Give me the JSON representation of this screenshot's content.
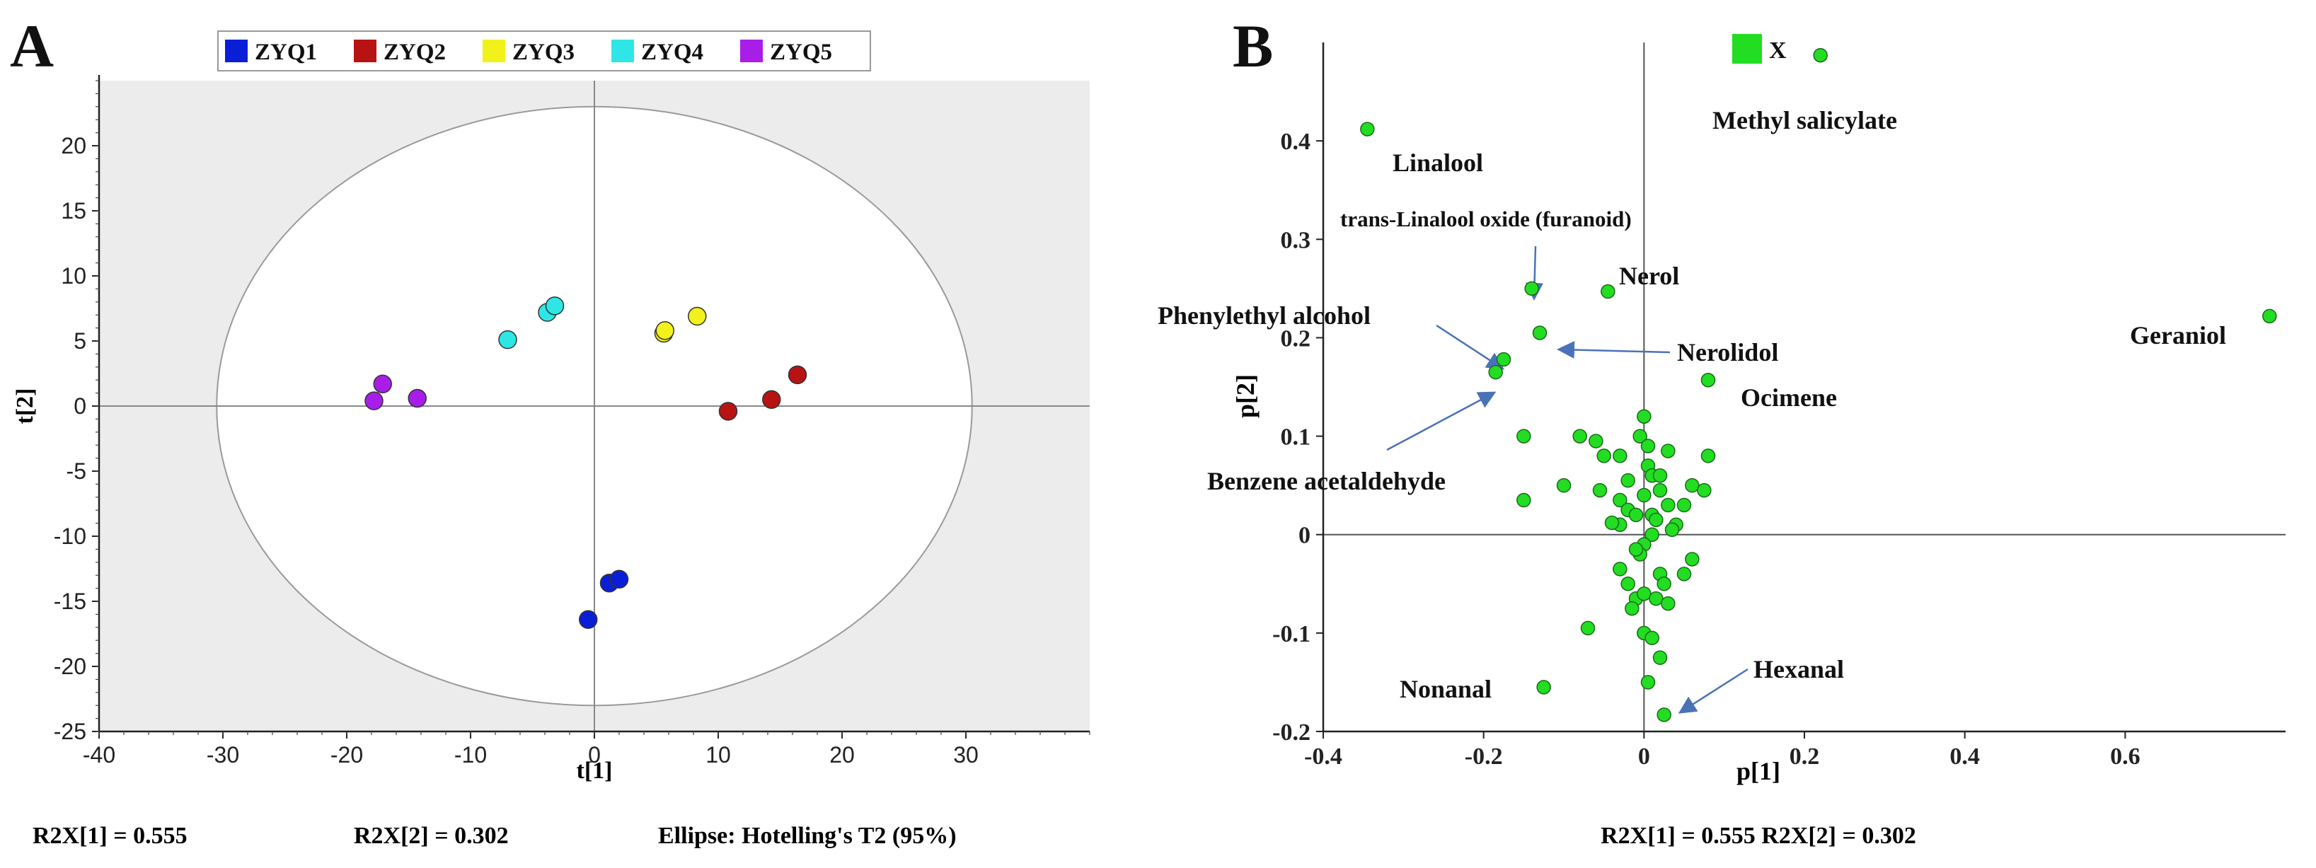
{
  "chart_data": [
    {
      "type": "scatter",
      "panel_label": "A",
      "xlabel": "t[1]",
      "ylabel": "t[2]",
      "xlim": [
        -40,
        40
      ],
      "ylim": [
        -25,
        25
      ],
      "xticks": [
        -40,
        -30,
        -20,
        -10,
        0,
        10,
        20,
        30
      ],
      "yticks": [
        -25,
        -20,
        -15,
        -10,
        -5,
        0,
        5,
        10,
        15,
        20
      ],
      "legend_position": "top",
      "ellipse": {
        "center": [
          0,
          0
        ],
        "rx": 30.5,
        "ry": 23.0
      },
      "footer": [
        "R2X[1] = 0.555",
        "R2X[2] = 0.302",
        "Ellipse: Hotelling's T2 (95%)"
      ],
      "series": [
        {
          "name": "ZYQ1",
          "color": "#0a1ed8",
          "points": [
            [
              -0.5,
              -16.4
            ],
            [
              1.2,
              -13.6
            ],
            [
              2.0,
              -13.3
            ]
          ]
        },
        {
          "name": "ZYQ2",
          "color": "#b81313",
          "points": [
            [
              10.8,
              -0.4
            ],
            [
              14.3,
              0.5
            ],
            [
              16.4,
              2.4
            ]
          ]
        },
        {
          "name": "ZYQ3",
          "color": "#f2f21a",
          "points": [
            [
              5.6,
              5.6
            ],
            [
              5.7,
              5.8
            ],
            [
              8.3,
              6.9
            ]
          ]
        },
        {
          "name": "ZYQ4",
          "color": "#2ee6e6",
          "points": [
            [
              -7.0,
              5.1
            ],
            [
              -3.8,
              7.2
            ],
            [
              -3.2,
              7.7
            ]
          ]
        },
        {
          "name": "ZYQ5",
          "color": "#a81ee8",
          "points": [
            [
              -17.8,
              0.4
            ],
            [
              -17.1,
              1.7
            ],
            [
              -14.3,
              0.6
            ]
          ]
        }
      ]
    },
    {
      "type": "scatter",
      "panel_label": "B",
      "xlabel": "p[1]",
      "ylabel": "p[2]",
      "xlim": [
        -0.4,
        0.8
      ],
      "ylim": [
        -0.2,
        0.5
      ],
      "xticks": [
        -0.4,
        -0.2,
        0,
        0.2,
        0.4,
        0.6
      ],
      "yticks": [
        -0.2,
        -0.1,
        0,
        0.1,
        0.2,
        0.3,
        0.4
      ],
      "legend_position": "top",
      "footer": [
        "R2X[1] = 0.555 R2X[2] = 0.302"
      ],
      "series": [
        {
          "name": "X",
          "color": "#22dd22",
          "points": [
            [
              0.22,
              0.487
            ],
            [
              -0.345,
              0.412
            ],
            [
              0.78,
              0.222
            ],
            [
              -0.14,
              0.25
            ],
            [
              -0.045,
              0.247
            ],
            [
              -0.13,
              0.205
            ],
            [
              -0.175,
              0.178
            ],
            [
              -0.185,
              0.165
            ],
            [
              0.08,
              0.157
            ],
            [
              -0.15,
              0.1
            ],
            [
              -0.08,
              0.1
            ],
            [
              -0.1,
              0.05
            ],
            [
              -0.05,
              0.08
            ],
            [
              -0.03,
              0.08
            ],
            [
              -0.06,
              0.095
            ],
            [
              -0.055,
              0.045
            ],
            [
              -0.03,
              0.035
            ],
            [
              -0.02,
              0.025
            ],
            [
              -0.03,
              0.01
            ],
            [
              0.02,
              0.045
            ],
            [
              0.03,
              0.03
            ],
            [
              0.04,
              0.01
            ],
            [
              0.01,
              0.02
            ],
            [
              0,
              0.12
            ],
            [
              -0.005,
              0.1
            ],
            [
              0.005,
              0.07
            ],
            [
              0.01,
              0.06
            ],
            [
              0.02,
              0.06
            ],
            [
              0.03,
              0.085
            ],
            [
              0.05,
              0.03
            ],
            [
              0.06,
              0.05
            ],
            [
              0.075,
              0.045
            ],
            [
              0.08,
              0.08
            ],
            [
              -0.15,
              0.035
            ],
            [
              -0.02,
              0.055
            ],
            [
              0.0,
              0.04
            ],
            [
              -0.01,
              0.02
            ],
            [
              0.01,
              0.0
            ],
            [
              0.0,
              -0.01
            ],
            [
              -0.005,
              -0.02
            ],
            [
              -0.03,
              -0.035
            ],
            [
              -0.02,
              -0.05
            ],
            [
              -0.01,
              -0.065
            ],
            [
              0.0,
              -0.06
            ],
            [
              0.015,
              -0.065
            ],
            [
              0.02,
              -0.04
            ],
            [
              0.03,
              -0.07
            ],
            [
              0.025,
              -0.05
            ],
            [
              0.05,
              -0.04
            ],
            [
              0.06,
              -0.025
            ],
            [
              -0.015,
              -0.075
            ],
            [
              0.0,
              -0.1
            ],
            [
              0.01,
              -0.105
            ],
            [
              0.02,
              -0.125
            ],
            [
              0.005,
              -0.15
            ],
            [
              -0.07,
              -0.095
            ],
            [
              -0.125,
              -0.155
            ],
            [
              0.025,
              -0.183
            ],
            [
              0.015,
              0.015
            ],
            [
              -0.04,
              0.012
            ],
            [
              0.035,
              0.005
            ],
            [
              -0.01,
              -0.015
            ],
            [
              0.005,
              0.09
            ]
          ]
        }
      ],
      "annotations": [
        {
          "text": "Methyl salicylate",
          "x": 0.22,
          "y": 0.487
        },
        {
          "text": "Linalool",
          "x": -0.345,
          "y": 0.412
        },
        {
          "text": "trans-Linalool oxide (furanoid)",
          "x": -0.14,
          "y": 0.25
        },
        {
          "text": "Nerol",
          "x": -0.045,
          "y": 0.247
        },
        {
          "text": "Phenylethyl alcohol",
          "x": -0.175,
          "y": 0.178
        },
        {
          "text": "Nerolidol",
          "x": -0.13,
          "y": 0.205
        },
        {
          "text": "Geraniol",
          "x": 0.78,
          "y": 0.222
        },
        {
          "text": "Ocimene",
          "x": 0.08,
          "y": 0.157
        },
        {
          "text": "Benzene acetaldehyde",
          "x": -0.185,
          "y": 0.165
        },
        {
          "text": "Hexanal",
          "x": 0.025,
          "y": -0.183
        },
        {
          "text": "Nonanal",
          "x": -0.125,
          "y": -0.155
        }
      ]
    }
  ]
}
